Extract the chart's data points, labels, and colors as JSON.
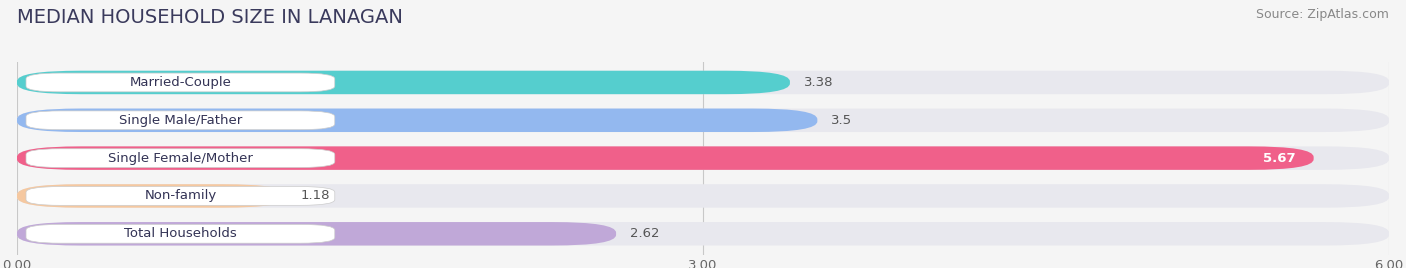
{
  "title": "MEDIAN HOUSEHOLD SIZE IN LANAGAN",
  "source": "Source: ZipAtlas.com",
  "categories": [
    "Married-Couple",
    "Single Male/Father",
    "Single Female/Mother",
    "Non-family",
    "Total Households"
  ],
  "values": [
    3.38,
    3.5,
    5.67,
    1.18,
    2.62
  ],
  "bar_colors": [
    "#55cece",
    "#93b8ef",
    "#f0608a",
    "#f5c8a0",
    "#c0a8d8"
  ],
  "xlim": [
    0,
    6.0
  ],
  "xtick_labels": [
    "0.00",
    "3.00",
    "6.00"
  ],
  "bg_color": "#f5f5f5",
  "bar_bg_color": "#e8e8ee",
  "title_fontsize": 14,
  "label_fontsize": 9.5,
  "value_fontsize": 9.5,
  "source_fontsize": 9
}
